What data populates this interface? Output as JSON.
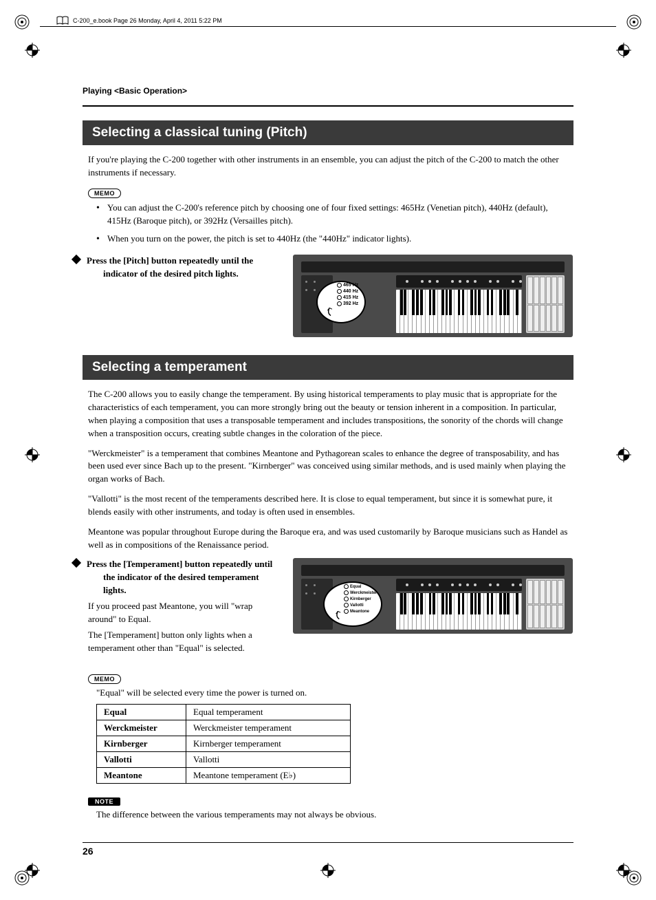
{
  "meta": {
    "book_info": "C-200_e.book  Page 26  Monday, April 4, 2011  5:22 PM"
  },
  "running_head": "Playing <Basic Operation>",
  "section1": {
    "title": "Selecting a classical tuning (Pitch)",
    "intro": "If you're playing the C-200 together with other instruments in an ensemble, you can adjust the pitch of the C-200 to match the other instruments if necessary.",
    "memo_label": "MEMO",
    "memo_items": [
      "You can adjust the C-200's reference pitch by choosing one of four fixed settings: 465Hz (Venetian pitch), 440Hz (default), 415Hz (Baroque pitch), or 392Hz (Versailles pitch).",
      "When you turn on the power, the pitch is set to 440Hz (the \"440Hz\" indicator lights)."
    ],
    "step": "Press the [Pitch] button repeatedly until the indicator of the desired pitch lights.",
    "callout_items": [
      "465 Hz",
      "440 Hz",
      "415 Hz",
      "392 Hz"
    ]
  },
  "section2": {
    "title": "Selecting a temperament",
    "para1": "The C-200 allows you to easily change the temperament. By using historical temperaments to play music that is appropriate for the characteristics of each temperament, you can more strongly bring out the beauty or tension inherent in a composition. In particular, when playing a composition that uses a transposable temperament and includes transpositions, the sonority of the chords will change when a transposition occurs, creating subtle changes in the coloration of the piece.",
    "para2": "\"Werckmeister\" is a temperament that combines Meantone and Pythagorean scales to enhance the degree of transposability, and has been used ever since Bach up to the present. \"Kirnberger\" was conceived using similar methods, and is used mainly when playing the organ works of Bach.",
    "para3": "\"Vallotti\" is the most recent of the temperaments described here. It is close to equal temperament, but since it is somewhat pure, it blends easily with other instruments, and today is often used in ensembles.",
    "para4": "Meantone was popular throughout Europe during the Baroque era, and was used customarily by Baroque musicians such as Handel as well as in compositions of the Renaissance period.",
    "step_bold": "Press the [Temperament] button repeatedly until the indicator of the desired temperament lights.",
    "step_follow1": "If you proceed past Meantone, you will \"wrap around\" to Equal.",
    "step_follow2": "The [Temperament] button only lights when a temperament other than \"Equal\" is selected.",
    "callout_items": [
      "Equal",
      "Werckmeister",
      "Kirnberger",
      "Vallotti",
      "Meantone"
    ],
    "memo_label": "MEMO",
    "memo_text": "\"Equal\" will be selected every time the power is turned on.",
    "table": {
      "rows": [
        {
          "k": "Equal",
          "v": "Equal temperament"
        },
        {
          "k": "Werckmeister",
          "v": "Werckmeister temperament"
        },
        {
          "k": "Kirnberger",
          "v": "Kirnberger temperament"
        },
        {
          "k": "Vallotti",
          "v": "Vallotti"
        },
        {
          "k": "Meantone",
          "v": "Meantone temperament (E♭)"
        }
      ]
    },
    "note_label": "NOTE",
    "note_text": "The difference between the various temperaments may not always be obvious."
  },
  "page_number": "26",
  "colors": {
    "section_bg": "#3a3a3a",
    "section_fg": "#ffffff",
    "kb_bg": "#4a4a4a"
  },
  "keyboard": {
    "white_key_count": 30,
    "black_key_positions_pct": [
      3.2,
      6.2,
      12.8,
      16,
      19.2,
      26,
      29.2,
      36,
      39.2,
      42.2,
      49,
      52.2,
      59,
      62.2,
      65.2,
      72,
      75.2,
      82,
      85.2,
      88.2,
      95
    ]
  }
}
